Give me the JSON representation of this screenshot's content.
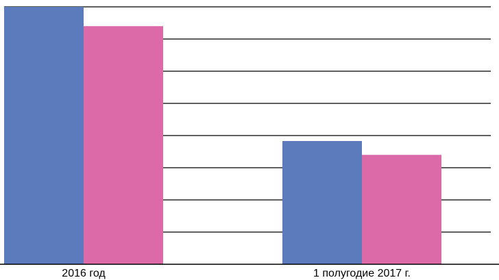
{
  "chart_data": {
    "type": "bar",
    "categories": [
      "2016 год",
      "1 полугодие 2017 г."
    ],
    "series": [
      {
        "color": "#5b7bbd",
        "values": [
          8.0,
          3.83
        ]
      },
      {
        "color": "#dc6aa9",
        "values": [
          7.4,
          3.4
        ]
      }
    ],
    "ylim": [
      0,
      8
    ],
    "grid": true,
    "legend": "none",
    "gridline_color": "#000000",
    "axis_color": "#000000"
  }
}
